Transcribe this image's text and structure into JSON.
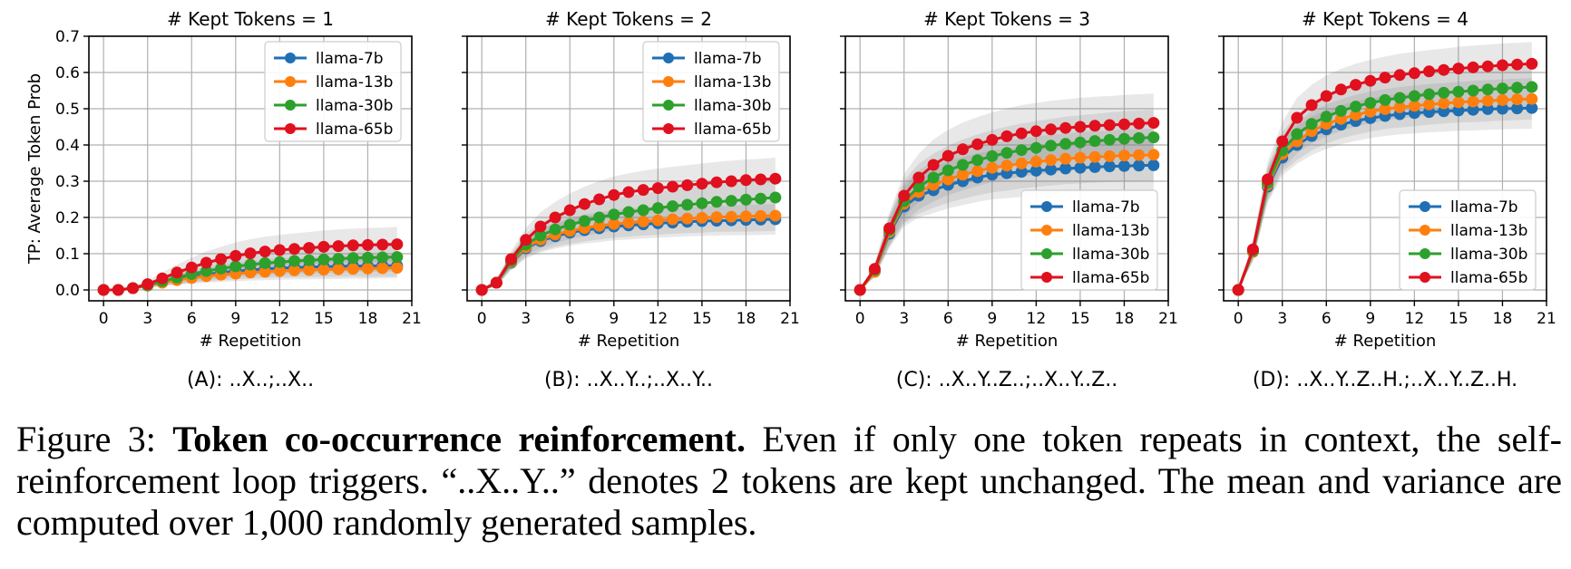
{
  "figure": {
    "ylabel": "TP: Average Token Prob",
    "xlabel": "# Repetition",
    "colors": {
      "llama-7b": "#1f6fb4",
      "llama-13b": "#ff7f0e",
      "llama-30b": "#2ca02c",
      "llama-65b": "#e0101e"
    }
  },
  "caption": {
    "label": "Figure 3:",
    "bold": "Token co-occurrence reinforcement.",
    "text": "Even if only one token repeats in context, the self-reinforcement loop triggers. “..X..Y..” denotes 2 tokens are kept unchanged. The mean and variance are computed over 1,000 randomly generated samples."
  },
  "chart_data": [
    {
      "type": "line",
      "title": "# Kept Tokens = 1",
      "subtitle": "(A): ..X..;..X..",
      "xlabel": "# Repetition",
      "ylabel": "TP: Average Token Prob",
      "xlim": [
        -1,
        21
      ],
      "ylim": [
        -0.03,
        0.7
      ],
      "xticks": [
        0,
        3,
        6,
        9,
        12,
        15,
        18,
        21
      ],
      "yticks": [
        0.0,
        0.1,
        0.2,
        0.3,
        0.4,
        0.5,
        0.6,
        0.7
      ],
      "grid": true,
      "legend": "top-right",
      "x": [
        0,
        1,
        2,
        3,
        4,
        5,
        6,
        7,
        8,
        9,
        10,
        11,
        12,
        13,
        14,
        15,
        16,
        17,
        18,
        19,
        20
      ],
      "series": [
        {
          "name": "llama-7b",
          "values": [
            0,
            0,
            0.005,
            0.012,
            0.022,
            0.03,
            0.037,
            0.043,
            0.048,
            0.052,
            0.055,
            0.058,
            0.06,
            0.062,
            0.063,
            0.064,
            0.065,
            0.066,
            0.066,
            0.067,
            0.067
          ],
          "spread": [
            0,
            0,
            0.003,
            0.006,
            0.01,
            0.014,
            0.017,
            0.019,
            0.021,
            0.023,
            0.024,
            0.025,
            0.026,
            0.027,
            0.028,
            0.028,
            0.029,
            0.029,
            0.03,
            0.03,
            0.03
          ]
        },
        {
          "name": "llama-13b",
          "values": [
            0,
            0,
            0.005,
            0.012,
            0.02,
            0.027,
            0.033,
            0.038,
            0.042,
            0.045,
            0.048,
            0.05,
            0.052,
            0.054,
            0.055,
            0.056,
            0.057,
            0.058,
            0.059,
            0.06,
            0.061
          ],
          "spread": [
            0,
            0,
            0.003,
            0.006,
            0.01,
            0.013,
            0.016,
            0.018,
            0.02,
            0.021,
            0.022,
            0.023,
            0.024,
            0.025,
            0.026,
            0.026,
            0.027,
            0.027,
            0.028,
            0.028,
            0.028
          ]
        },
        {
          "name": "llama-30b",
          "values": [
            0,
            0,
            0.005,
            0.013,
            0.024,
            0.034,
            0.044,
            0.052,
            0.059,
            0.065,
            0.07,
            0.074,
            0.077,
            0.08,
            0.082,
            0.084,
            0.086,
            0.088,
            0.089,
            0.09,
            0.091
          ],
          "spread": [
            0,
            0,
            0.003,
            0.007,
            0.012,
            0.017,
            0.021,
            0.024,
            0.027,
            0.029,
            0.031,
            0.033,
            0.034,
            0.035,
            0.036,
            0.037,
            0.038,
            0.038,
            0.039,
            0.04,
            0.04
          ]
        },
        {
          "name": "llama-65b",
          "values": [
            0,
            0,
            0.005,
            0.016,
            0.032,
            0.048,
            0.062,
            0.075,
            0.085,
            0.094,
            0.101,
            0.106,
            0.11,
            0.113,
            0.116,
            0.119,
            0.121,
            0.123,
            0.124,
            0.125,
            0.126
          ],
          "spread": [
            0,
            0,
            0.004,
            0.009,
            0.016,
            0.022,
            0.027,
            0.031,
            0.034,
            0.037,
            0.039,
            0.041,
            0.042,
            0.043,
            0.044,
            0.045,
            0.046,
            0.046,
            0.047,
            0.047,
            0.048
          ]
        }
      ]
    },
    {
      "type": "line",
      "title": "# Kept Tokens = 2",
      "subtitle": "(B): ..X..Y..;..X..Y..",
      "xlabel": "# Repetition",
      "xlim": [
        -1,
        21
      ],
      "ylim": [
        -0.03,
        0.7
      ],
      "xticks": [
        0,
        3,
        6,
        9,
        12,
        15,
        18,
        21
      ],
      "yticks": [
        0.0,
        0.1,
        0.2,
        0.3,
        0.4,
        0.5,
        0.6,
        0.7
      ],
      "grid": true,
      "legend": "top-right",
      "x": [
        0,
        1,
        2,
        3,
        4,
        5,
        6,
        7,
        8,
        9,
        10,
        11,
        12,
        13,
        14,
        15,
        16,
        17,
        18,
        19,
        20
      ],
      "series": [
        {
          "name": "llama-7b",
          "values": [
            0,
            0.02,
            0.075,
            0.115,
            0.135,
            0.148,
            0.158,
            0.165,
            0.17,
            0.175,
            0.178,
            0.181,
            0.184,
            0.186,
            0.188,
            0.19,
            0.191,
            0.192,
            0.193,
            0.194,
            0.195
          ],
          "spread": [
            0,
            0.01,
            0.02,
            0.028,
            0.032,
            0.034,
            0.036,
            0.037,
            0.038,
            0.038,
            0.039,
            0.039,
            0.04,
            0.04,
            0.04,
            0.041,
            0.041,
            0.041,
            0.042,
            0.042,
            0.042
          ]
        },
        {
          "name": "llama-13b",
          "values": [
            0,
            0.02,
            0.077,
            0.118,
            0.139,
            0.153,
            0.163,
            0.171,
            0.177,
            0.182,
            0.186,
            0.189,
            0.192,
            0.195,
            0.197,
            0.199,
            0.201,
            0.202,
            0.203,
            0.204,
            0.205
          ],
          "spread": [
            0,
            0.01,
            0.02,
            0.028,
            0.032,
            0.034,
            0.036,
            0.037,
            0.038,
            0.038,
            0.039,
            0.039,
            0.04,
            0.04,
            0.04,
            0.041,
            0.041,
            0.041,
            0.042,
            0.042,
            0.042
          ]
        },
        {
          "name": "llama-30b",
          "values": [
            0,
            0.02,
            0.08,
            0.125,
            0.15,
            0.167,
            0.18,
            0.19,
            0.2,
            0.208,
            0.215,
            0.22,
            0.226,
            0.231,
            0.235,
            0.239,
            0.243,
            0.246,
            0.249,
            0.252,
            0.255
          ],
          "spread": [
            0,
            0.01,
            0.021,
            0.03,
            0.035,
            0.038,
            0.04,
            0.042,
            0.043,
            0.044,
            0.045,
            0.046,
            0.046,
            0.047,
            0.047,
            0.048,
            0.048,
            0.048,
            0.049,
            0.049,
            0.049
          ]
        },
        {
          "name": "llama-65b",
          "values": [
            0,
            0.02,
            0.085,
            0.138,
            0.175,
            0.2,
            0.22,
            0.237,
            0.25,
            0.262,
            0.27,
            0.276,
            0.281,
            0.285,
            0.289,
            0.293,
            0.297,
            0.3,
            0.303,
            0.305,
            0.307
          ],
          "spread": [
            0,
            0.011,
            0.022,
            0.033,
            0.039,
            0.043,
            0.046,
            0.048,
            0.05,
            0.051,
            0.052,
            0.053,
            0.054,
            0.055,
            0.055,
            0.056,
            0.056,
            0.057,
            0.057,
            0.057,
            0.058
          ]
        }
      ]
    },
    {
      "type": "line",
      "title": "# Kept Tokens = 3",
      "subtitle": "(C): ..X..Y..Z..;..X..Y..Z..",
      "xlabel": "# Repetition",
      "xlim": [
        -1,
        21
      ],
      "ylim": [
        -0.03,
        0.7
      ],
      "xticks": [
        0,
        3,
        6,
        9,
        12,
        15,
        18,
        21
      ],
      "yticks": [
        0.0,
        0.1,
        0.2,
        0.3,
        0.4,
        0.5,
        0.6,
        0.7
      ],
      "grid": true,
      "legend": "bottom-right",
      "x": [
        0,
        1,
        2,
        3,
        4,
        5,
        6,
        7,
        8,
        9,
        10,
        11,
        12,
        13,
        14,
        15,
        16,
        17,
        18,
        19,
        20
      ],
      "series": [
        {
          "name": "llama-7b",
          "values": [
            0,
            0.05,
            0.155,
            0.23,
            0.26,
            0.275,
            0.29,
            0.3,
            0.31,
            0.318,
            0.322,
            0.326,
            0.329,
            0.332,
            0.335,
            0.337,
            0.339,
            0.341,
            0.342,
            0.343,
            0.344
          ],
          "spread": [
            0,
            0.015,
            0.04,
            0.055,
            0.06,
            0.063,
            0.065,
            0.066,
            0.067,
            0.068,
            0.069,
            0.069,
            0.07,
            0.07,
            0.07,
            0.071,
            0.071,
            0.071,
            0.072,
            0.072,
            0.072
          ]
        },
        {
          "name": "llama-13b",
          "values": [
            0,
            0.05,
            0.16,
            0.238,
            0.27,
            0.29,
            0.305,
            0.318,
            0.328,
            0.337,
            0.343,
            0.349,
            0.354,
            0.358,
            0.362,
            0.365,
            0.367,
            0.369,
            0.371,
            0.372,
            0.373
          ],
          "spread": [
            0,
            0.015,
            0.04,
            0.055,
            0.06,
            0.063,
            0.065,
            0.066,
            0.067,
            0.068,
            0.069,
            0.069,
            0.07,
            0.07,
            0.07,
            0.071,
            0.071,
            0.071,
            0.072,
            0.072,
            0.072
          ]
        },
        {
          "name": "llama-30b",
          "values": [
            0,
            0.055,
            0.165,
            0.245,
            0.285,
            0.31,
            0.33,
            0.345,
            0.358,
            0.369,
            0.378,
            0.386,
            0.392,
            0.398,
            0.403,
            0.407,
            0.411,
            0.414,
            0.417,
            0.419,
            0.421
          ],
          "spread": [
            0,
            0.016,
            0.042,
            0.058,
            0.063,
            0.066,
            0.068,
            0.07,
            0.071,
            0.072,
            0.073,
            0.073,
            0.074,
            0.074,
            0.075,
            0.075,
            0.075,
            0.076,
            0.076,
            0.076,
            0.076
          ]
        },
        {
          "name": "llama-65b",
          "values": [
            0,
            0.058,
            0.17,
            0.26,
            0.31,
            0.345,
            0.37,
            0.388,
            0.402,
            0.414,
            0.424,
            0.432,
            0.438,
            0.443,
            0.447,
            0.45,
            0.453,
            0.455,
            0.457,
            0.459,
            0.461
          ],
          "spread": [
            0,
            0.017,
            0.044,
            0.06,
            0.066,
            0.07,
            0.072,
            0.074,
            0.075,
            0.076,
            0.077,
            0.078,
            0.078,
            0.079,
            0.079,
            0.08,
            0.08,
            0.08,
            0.081,
            0.081,
            0.081
          ]
        }
      ]
    },
    {
      "type": "line",
      "title": "# Kept Tokens = 4",
      "subtitle": "(D): ..X..Y..Z..H.;..X..Y..Z..H.",
      "xlabel": "# Repetition",
      "xlim": [
        -1,
        21
      ],
      "ylim": [
        -0.03,
        0.7
      ],
      "xticks": [
        0,
        3,
        6,
        9,
        12,
        15,
        18,
        21
      ],
      "yticks": [
        0.0,
        0.1,
        0.2,
        0.3,
        0.4,
        0.5,
        0.6,
        0.7
      ],
      "grid": true,
      "legend": "bottom-right",
      "x": [
        0,
        1,
        2,
        3,
        4,
        5,
        6,
        7,
        8,
        9,
        10,
        11,
        12,
        13,
        14,
        15,
        16,
        17,
        18,
        19,
        20
      ],
      "series": [
        {
          "name": "llama-7b",
          "values": [
            0,
            0.105,
            0.285,
            0.365,
            0.4,
            0.425,
            0.443,
            0.456,
            0.466,
            0.474,
            0.48,
            0.485,
            0.488,
            0.491,
            0.493,
            0.495,
            0.497,
            0.499,
            0.5,
            0.501,
            0.502
          ],
          "spread": [
            0,
            0.025,
            0.045,
            0.05,
            0.052,
            0.053,
            0.054,
            0.054,
            0.055,
            0.055,
            0.055,
            0.056,
            0.056,
            0.056,
            0.056,
            0.056,
            0.057,
            0.057,
            0.057,
            0.057,
            0.057
          ]
        },
        {
          "name": "llama-13b",
          "values": [
            0,
            0.105,
            0.29,
            0.375,
            0.41,
            0.438,
            0.458,
            0.472,
            0.483,
            0.492,
            0.499,
            0.504,
            0.508,
            0.512,
            0.515,
            0.518,
            0.52,
            0.522,
            0.524,
            0.526,
            0.527
          ],
          "spread": [
            0,
            0.025,
            0.045,
            0.05,
            0.052,
            0.053,
            0.054,
            0.054,
            0.055,
            0.055,
            0.055,
            0.056,
            0.056,
            0.056,
            0.056,
            0.056,
            0.057,
            0.057,
            0.057,
            0.057,
            0.057
          ]
        },
        {
          "name": "llama-30b",
          "values": [
            0,
            0.108,
            0.295,
            0.385,
            0.43,
            0.458,
            0.478,
            0.494,
            0.506,
            0.516,
            0.524,
            0.53,
            0.535,
            0.54,
            0.544,
            0.547,
            0.55,
            0.553,
            0.556,
            0.558,
            0.56
          ],
          "spread": [
            0,
            0.026,
            0.046,
            0.051,
            0.053,
            0.054,
            0.055,
            0.055,
            0.056,
            0.056,
            0.056,
            0.057,
            0.057,
            0.057,
            0.057,
            0.058,
            0.058,
            0.058,
            0.058,
            0.058,
            0.058
          ]
        },
        {
          "name": "llama-65b",
          "values": [
            0,
            0.112,
            0.305,
            0.41,
            0.475,
            0.51,
            0.535,
            0.553,
            0.566,
            0.577,
            0.586,
            0.593,
            0.598,
            0.603,
            0.607,
            0.611,
            0.614,
            0.617,
            0.62,
            0.622,
            0.624
          ],
          "spread": [
            0,
            0.027,
            0.048,
            0.053,
            0.055,
            0.056,
            0.057,
            0.057,
            0.058,
            0.058,
            0.058,
            0.059,
            0.059,
            0.059,
            0.059,
            0.06,
            0.06,
            0.06,
            0.06,
            0.06,
            0.06
          ]
        }
      ]
    }
  ]
}
